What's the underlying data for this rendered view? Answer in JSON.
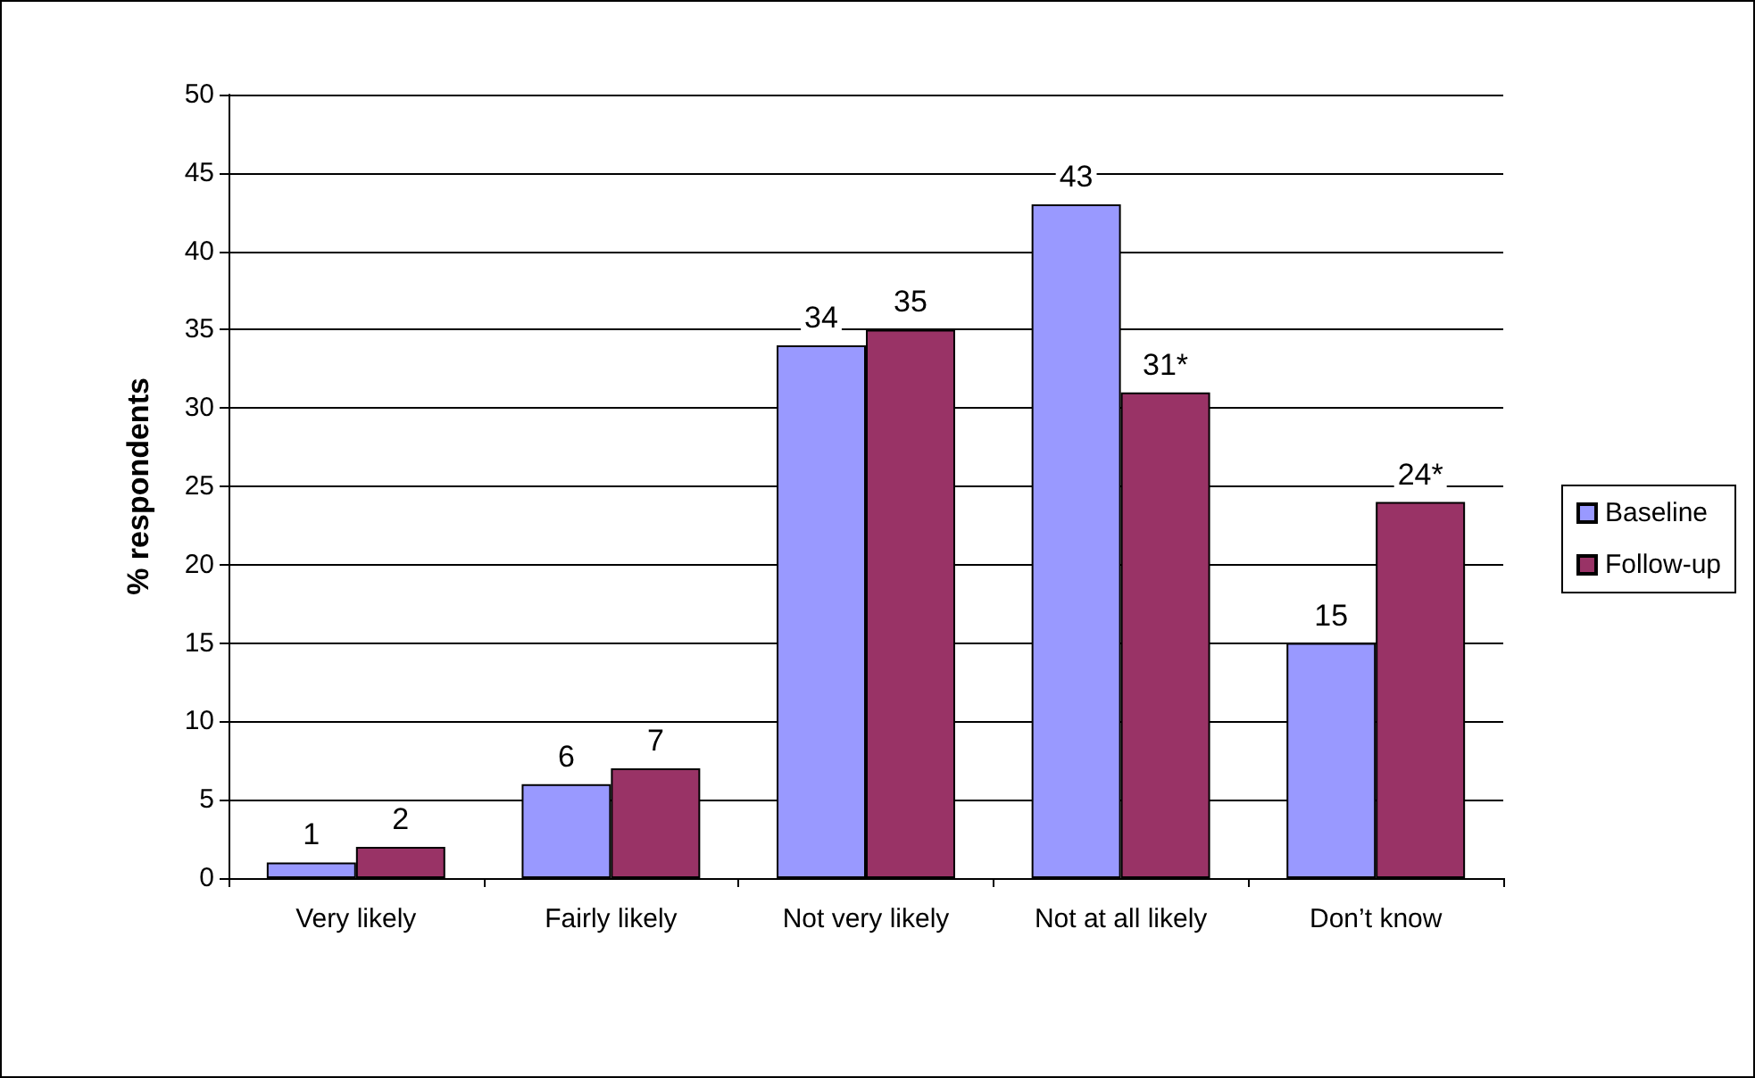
{
  "chart_data": {
    "type": "bar",
    "ylabel": "% respondents",
    "categories": [
      "Very likely",
      "Fairly likely",
      "Not very likely",
      "Not at all likely",
      "Don’t know"
    ],
    "series": [
      {
        "name": "Baseline",
        "color": "#9999ff",
        "values": [
          1,
          6,
          34,
          43,
          15
        ],
        "value_labels": [
          "1",
          "6",
          "34",
          "43",
          "15"
        ]
      },
      {
        "name": "Follow-up",
        "color": "#993366",
        "values": [
          2,
          7,
          35,
          31,
          24
        ],
        "value_labels": [
          "2",
          "7",
          "35",
          "31*",
          "24*"
        ]
      }
    ],
    "ylim": [
      0,
      50
    ],
    "yticks": [
      0,
      5,
      10,
      15,
      20,
      25,
      30,
      35,
      40,
      45,
      50
    ],
    "grid": "y",
    "legend": "right"
  }
}
